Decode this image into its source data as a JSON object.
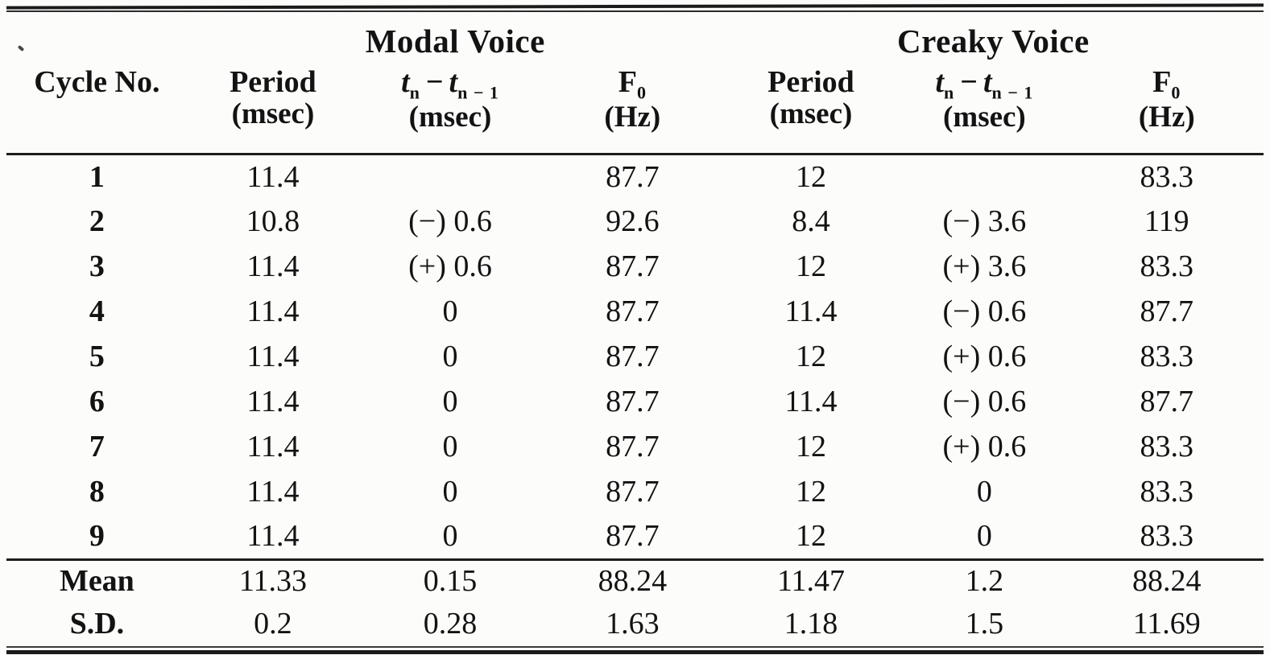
{
  "page": {
    "background": "#fcfcfb",
    "ink": "#131313"
  },
  "table": {
    "group_headers": [
      {
        "label": "Modal Voice"
      },
      {
        "label": "Creaky Voice"
      }
    ],
    "columns": [
      {
        "label": "Cycle No."
      },
      {
        "label": "Period",
        "unit": "(msec)"
      },
      {
        "math": {
          "t1": "t",
          "sub1": "n",
          "minus": "−",
          "t2": "t",
          "sub2": "n − 1"
        },
        "unit": "(msec)"
      },
      {
        "label": "F",
        "sub": "0",
        "unit": "(Hz)"
      },
      {
        "label": "Period",
        "unit": "(msec)"
      },
      {
        "math": {
          "t1": "t",
          "sub1": "n",
          "minus": "−",
          "t2": "t",
          "sub2": "n − 1"
        },
        "unit": "(msec)"
      },
      {
        "label": "F",
        "sub": "0",
        "unit": "(Hz)"
      }
    ],
    "rows": [
      {
        "cycle": "1",
        "cells": [
          "11.4",
          "",
          "87.7",
          "12",
          "",
          "83.3"
        ]
      },
      {
        "cycle": "2",
        "cells": [
          "10.8",
          "(−) 0.6",
          "92.6",
          "8.4",
          "(−) 3.6",
          "119"
        ]
      },
      {
        "cycle": "3",
        "cells": [
          "11.4",
          "(+) 0.6",
          "87.7",
          "12",
          "(+) 3.6",
          "83.3"
        ]
      },
      {
        "cycle": "4",
        "cells": [
          "11.4",
          "0",
          "87.7",
          "11.4",
          "(−) 0.6",
          "87.7"
        ]
      },
      {
        "cycle": "5",
        "cells": [
          "11.4",
          "0",
          "87.7",
          "12",
          "(+) 0.6",
          "83.3"
        ]
      },
      {
        "cycle": "6",
        "cells": [
          "11.4",
          "0",
          "87.7",
          "11.4",
          "(−) 0.6",
          "87.7"
        ]
      },
      {
        "cycle": "7",
        "cells": [
          "11.4",
          "0",
          "87.7",
          "12",
          "(+) 0.6",
          "83.3"
        ]
      },
      {
        "cycle": "8",
        "cells": [
          "11.4",
          "0",
          "87.7",
          "12",
          "0",
          "83.3"
        ]
      },
      {
        "cycle": "9",
        "cells": [
          "11.4",
          "0",
          "87.7",
          "12",
          "0",
          "83.3"
        ]
      }
    ],
    "summary_rows": [
      {
        "label": "Mean",
        "cells": [
          "11.33",
          "0.15",
          "88.24",
          "11.47",
          "1.2",
          "88.24"
        ]
      },
      {
        "label": "S.D.",
        "cells": [
          "0.2",
          "0.28",
          "1.63",
          "1.18",
          "1.5",
          "11.69"
        ]
      }
    ]
  }
}
